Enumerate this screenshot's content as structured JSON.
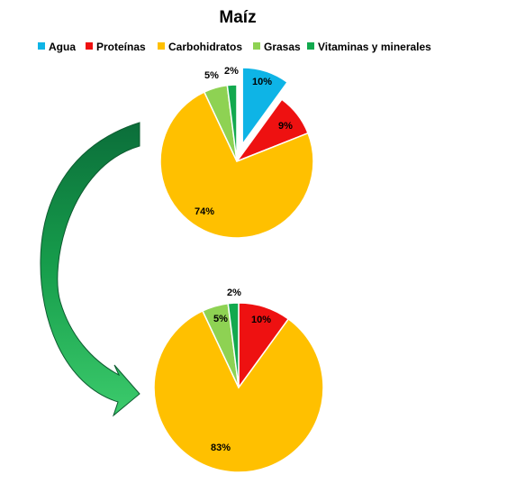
{
  "chart_data": {
    "type": "pie",
    "title": "Maíz",
    "legend_position": "top",
    "categories": [
      "Agua",
      "Proteínas",
      "Carbohidratos",
      "Grasas",
      "Vitaminas y minerales"
    ],
    "colors": [
      "#0EB4E6",
      "#EE1111",
      "#FFC000",
      "#8ED253",
      "#12A94E"
    ],
    "pies": [
      {
        "values": [
          10,
          9,
          74,
          5,
          2
        ],
        "labels": [
          "10%",
          "9%",
          "74%",
          "5%",
          "2%"
        ],
        "exploded": "Agua"
      },
      {
        "values": [
          0,
          10,
          83,
          5,
          2
        ],
        "labels": [
          "",
          "10%",
          "83%",
          "5%",
          "2%"
        ],
        "exploded": ""
      }
    ],
    "arrow": {
      "color": "#17A24D",
      "direction": "from-top-pie-to-bottom-pie"
    }
  }
}
